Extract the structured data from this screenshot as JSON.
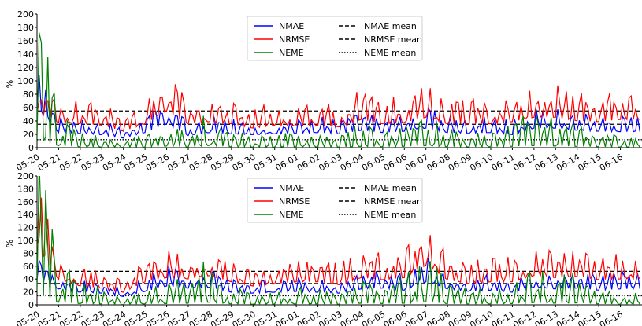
{
  "chart_data": [
    {
      "type": "line",
      "ylabel": "%",
      "ylim": [
        0,
        200
      ],
      "yticks": [
        0,
        20,
        40,
        60,
        80,
        100,
        120,
        140,
        160,
        180,
        200
      ],
      "categories": [
        "05-20",
        "05-21",
        "05-22",
        "05-23",
        "05-24",
        "05-25",
        "05-26",
        "05-27",
        "05-28",
        "05-29",
        "05-30",
        "05-31",
        "06-01",
        "06-02",
        "06-03",
        "06-04",
        "06-05",
        "06-06",
        "06-07",
        "06-08",
        "06-09",
        "06-10",
        "06-11",
        "06-12",
        "06-13",
        "06-14",
        "06-15",
        "06-16"
      ],
      "legend_position": "top-center",
      "series": [
        {
          "name": "NMAE",
          "color": "#0000ff",
          "style": "solid",
          "values": [
            90,
            35,
            33,
            30,
            22,
            35,
            55,
            28,
            35,
            32,
            30,
            32,
            33,
            35,
            32,
            40,
            35,
            38,
            45,
            35,
            33,
            35,
            30,
            45,
            45,
            40,
            38,
            37
          ]
        },
        {
          "name": "NRMSE",
          "color": "#ff0000",
          "style": "solid",
          "values": [
            80,
            58,
            55,
            52,
            38,
            55,
            85,
            55,
            60,
            55,
            45,
            52,
            50,
            52,
            48,
            65,
            55,
            58,
            70,
            55,
            55,
            55,
            60,
            70,
            70,
            62,
            60,
            65
          ]
        },
        {
          "name": "NEME",
          "color": "#008000",
          "style": "solid",
          "values": [
            125,
            30,
            15,
            10,
            5,
            10,
            25,
            10,
            35,
            15,
            10,
            10,
            15,
            12,
            10,
            20,
            15,
            20,
            30,
            15,
            12,
            15,
            20,
            30,
            25,
            20,
            15,
            10
          ]
        },
        {
          "name": "NMAE mean",
          "color": "#000000",
          "style": "dashed",
          "mean": 35
        },
        {
          "name": "NRMSE mean",
          "color": "#000000",
          "style": "dashed",
          "mean": 55
        },
        {
          "name": "NEME mean",
          "color": "#000000",
          "style": "dotted",
          "mean": 12
        }
      ]
    },
    {
      "type": "line",
      "ylabel": "%",
      "ylim": [
        0,
        200
      ],
      "yticks": [
        0,
        20,
        40,
        60,
        80,
        100,
        120,
        140,
        160,
        180,
        200
      ],
      "categories": [
        "05-20",
        "05-21",
        "05-22",
        "05-23",
        "05-24",
        "05-25",
        "05-26",
        "05-27",
        "05-28",
        "05-29",
        "05-30",
        "05-31",
        "06-01",
        "06-02",
        "06-03",
        "06-04",
        "06-05",
        "06-06",
        "06-07",
        "06-08",
        "06-09",
        "06-10",
        "06-11",
        "06-12",
        "06-13",
        "06-14",
        "06-15",
        "06-16"
      ],
      "legend_position": "top-center",
      "series": [
        {
          "name": "NMAE",
          "color": "#0000ff",
          "style": "solid",
          "values": [
            60,
            38,
            30,
            28,
            20,
            32,
            45,
            40,
            42,
            30,
            28,
            30,
            32,
            30,
            28,
            38,
            40,
            35,
            55,
            38,
            32,
            35,
            30,
            42,
            38,
            40,
            35,
            38
          ]
        },
        {
          "name": "NRMSE",
          "color": "#ff0000",
          "style": "solid",
          "values": [
            140,
            60,
            45,
            40,
            30,
            55,
            65,
            62,
            70,
            55,
            45,
            50,
            55,
            55,
            48,
            65,
            60,
            65,
            95,
            60,
            50,
            55,
            55,
            70,
            65,
            68,
            60,
            62
          ]
        },
        {
          "name": "NEME",
          "color": "#008000",
          "style": "solid",
          "values": [
            200,
            40,
            20,
            15,
            5,
            15,
            20,
            25,
            40,
            15,
            10,
            12,
            15,
            15,
            10,
            25,
            20,
            25,
            45,
            20,
            15,
            15,
            20,
            35,
            25,
            30,
            15,
            10
          ]
        },
        {
          "name": "NMAE mean",
          "color": "#000000",
          "style": "dashed",
          "mean": 33
        },
        {
          "name": "NRMSE mean",
          "color": "#000000",
          "style": "dashed",
          "mean": 52
        },
        {
          "name": "NEME mean",
          "color": "#000000",
          "style": "dotted",
          "mean": 14
        }
      ]
    }
  ]
}
